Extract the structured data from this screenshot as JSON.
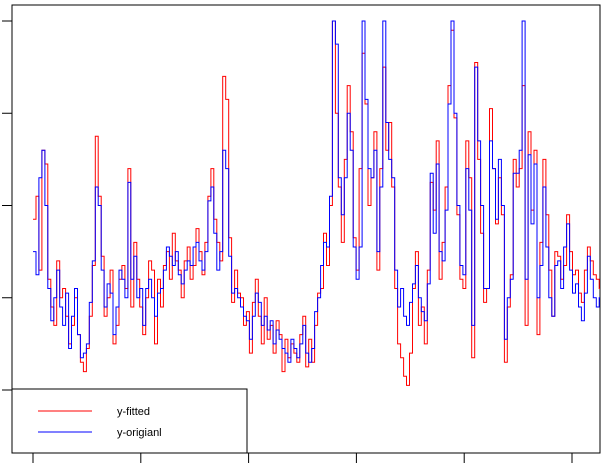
{
  "chart_data": {
    "type": "line",
    "title": "",
    "xlabel": "",
    "ylabel": "",
    "x_tick_labels": [
      "",
      "",
      "",
      "",
      "",
      ""
    ],
    "y_tick_labels": [
      "",
      "",
      "",
      "",
      ""
    ],
    "ylim": [
      -0.68,
      4.17
    ],
    "y_ticks": [
      0,
      1,
      2,
      3,
      4
    ],
    "x_ticks": [
      0,
      100,
      200,
      300,
      400,
      500
    ],
    "xlim": [
      -20,
      525
    ],
    "grid": false,
    "legend_position": "bottomleft",
    "step_style": true,
    "x_start": 0,
    "x_step": 2.75,
    "series": [
      {
        "name": "y-fitted",
        "color": "#ff0000",
        "values": [
          1.85,
          2.1,
          1.3,
          2.6,
          2.45,
          1.2,
          0.9,
          0.7,
          1.4,
          1.0,
          1.1,
          0.8,
          0.5,
          0.7,
          1.0,
          0.6,
          0.3,
          0.2,
          0.45,
          0.8,
          1.35,
          2.75,
          2.1,
          1.45,
          0.8,
          1.0,
          1.3,
          0.5,
          0.7,
          1.2,
          1.35,
          1.1,
          2.4,
          0.9,
          1.6,
          1.2,
          0.9,
          0.6,
          1.0,
          1.4,
          1.3,
          0.5,
          1.2,
          0.9,
          1.35,
          1.5,
          1.2,
          1.7,
          1.4,
          1.3,
          1.0,
          1.4,
          1.55,
          1.2,
          1.35,
          1.75,
          1.5,
          1.25,
          1.6,
          2.1,
          2.4,
          1.85,
          1.6,
          1.4,
          3.4,
          3.15,
          1.65,
          0.95,
          1.3,
          1.05,
          1.0,
          0.7,
          0.85,
          0.4,
          0.95,
          1.2,
          0.8,
          0.5,
          1.0,
          0.55,
          0.7,
          0.4,
          0.75,
          0.6,
          0.2,
          0.55,
          0.35,
          0.5,
          0.4,
          0.3,
          0.6,
          0.8,
          0.25,
          0.55,
          0.3,
          0.7,
          1.05,
          1.1,
          1.7,
          1.35,
          2.0,
          4.1,
          3.0,
          2.2,
          1.6,
          2.5,
          3.3,
          2.8,
          1.65,
          1.3,
          2.4,
          3.65,
          3.1,
          2.0,
          2.3,
          2.8,
          1.3,
          2.4,
          3.5,
          2.6,
          2.9,
          2.2,
          1.1,
          0.5,
          0.35,
          0.15,
          0.05,
          0.4,
          1.1,
          1.5,
          0.7,
          0.9,
          0.5,
          1.3,
          2.25,
          1.95,
          2.7,
          1.2,
          1.6,
          2.2,
          3.3,
          3.9,
          2.95,
          1.9,
          1.2,
          1.1,
          2.7,
          2.3,
          0.35,
          3.55,
          2.5,
          1.7,
          0.95,
          1.1,
          3.05,
          2.4,
          1.8,
          2.3,
          1.9,
          0.3,
          0.9,
          1.25,
          2.5,
          2.2,
          2.4,
          3.3,
          0.7,
          2.8,
          1.95,
          2.6,
          0.6,
          1.6,
          2.5,
          1.9,
          1.3,
          0.8,
          1.5,
          1.45,
          1.2,
          1.35,
          1.9,
          1.5,
          1.25,
          1.3,
          1.05,
          0.95,
          1.3,
          1.55,
          1.4,
          1.25,
          1.2,
          1.1,
          1.45,
          1.15,
          1.6,
          1.3,
          1.35,
          1.1,
          0.95,
          1.4,
          2.1,
          1.5,
          1.25,
          1.1,
          3.3,
          1.8,
          0.7,
          1.35,
          0.9,
          1.1,
          2.3,
          1.6,
          1.0,
          0.6,
          0.3,
          0.1,
          0.4,
          0.55,
          0.15,
          0.3,
          0.45,
          0.75,
          0.35,
          0.25,
          -0.05,
          0.3,
          0.55,
          0.8,
          0.4,
          0.6,
          0.2,
          -0.15,
          0.5,
          0.9,
          0.6,
          0.3,
          0.75,
          0.95,
          0.4,
          0.2,
          0.6,
          0.85,
          0.45,
          0.9,
          0.55,
          0.35,
          0.25,
          0.7,
          0.95,
          0.5,
          0.3,
          0.65,
          0.9,
          1.1,
          0.8,
          1.25,
          0.55,
          0.65,
          1.05,
          0.9,
          1.3,
          0.8,
          0.6,
          0.85,
          1.45,
          1.0,
          0.8,
          0.4,
          0.7,
          1.1,
          1.2,
          0.85,
          1.05,
          0.75,
          0.45,
          0.9,
          1.2,
          1.75,
          1.4,
          1.05,
          0.65,
          0.5,
          0.75,
          0.95,
          1.35,
          1.6,
          1.2,
          1.5,
          1.4,
          1.8,
          1.25,
          1.1,
          0.65,
          0.45,
          0.8,
          1.1,
          1.45,
          1.2,
          0.85,
          0.5,
          0.9,
          1.25,
          0.7,
          0.9,
          1.3,
          1.1,
          1.45,
          1.9,
          1.7,
          1.5,
          1.25,
          1.4
        ]
      },
      {
        "name": "y-origianl",
        "color": "#0000ff",
        "values": [
          1.5,
          1.25,
          2.3,
          2.6,
          2.0,
          1.1,
          0.75,
          1.0,
          1.3,
          0.9,
          0.7,
          1.05,
          0.45,
          0.8,
          1.1,
          0.6,
          0.35,
          0.4,
          0.5,
          0.95,
          1.4,
          2.2,
          2.0,
          1.3,
          0.9,
          1.15,
          1.05,
          0.6,
          0.9,
          1.3,
          1.2,
          1.0,
          2.25,
          1.2,
          1.45,
          1.0,
          1.1,
          0.7,
          1.1,
          1.2,
          1.0,
          0.8,
          1.05,
          1.1,
          1.3,
          1.55,
          1.45,
          1.35,
          1.5,
          1.25,
          1.15,
          1.3,
          1.4,
          1.35,
          1.55,
          1.6,
          1.4,
          1.3,
          1.5,
          2.05,
          2.2,
          1.7,
          1.3,
          1.5,
          2.6,
          2.4,
          1.45,
          1.05,
          1.1,
          1.0,
          0.9,
          0.8,
          0.75,
          0.55,
          0.8,
          1.05,
          0.95,
          0.7,
          0.8,
          0.65,
          0.75,
          0.5,
          0.65,
          0.55,
          0.45,
          0.4,
          0.3,
          0.55,
          0.45,
          0.35,
          0.5,
          0.7,
          0.4,
          0.3,
          0.45,
          0.85,
          1.0,
          1.35,
          1.6,
          1.55,
          2.1,
          4.0,
          3.75,
          2.3,
          1.9,
          2.3,
          3.0,
          2.6,
          1.55,
          1.2,
          1.55,
          4.0,
          3.15,
          2.4,
          2.3,
          2.6,
          1.5,
          2.2,
          4.0,
          2.9,
          2.5,
          2.3,
          1.3,
          0.9,
          1.1,
          0.8,
          0.7,
          0.95,
          1.15,
          1.35,
          1.0,
          0.85,
          0.75,
          1.15,
          2.35,
          1.7,
          2.45,
          1.5,
          1.4,
          1.95,
          3.1,
          4.0,
          3.0,
          2.0,
          1.35,
          1.25,
          2.4,
          1.95,
          0.7,
          3.5,
          2.7,
          2.0,
          1.1,
          1.1,
          2.7,
          2.4,
          1.85,
          2.5,
          2.0,
          0.55,
          1.0,
          1.2,
          2.35,
          2.35,
          2.6,
          4.0,
          1.2,
          2.55,
          1.8,
          2.45,
          1.0,
          1.35,
          2.2,
          1.55,
          1.0,
          0.8,
          1.35,
          1.4,
          1.1,
          1.55,
          1.8,
          1.3,
          1.05,
          1.15,
          0.9,
          0.75,
          1.05,
          1.45,
          1.2,
          1.0,
          0.9,
          1.0,
          1.35,
          1.05,
          1.45,
          1.25,
          1.2,
          1.0,
          1.1,
          1.55,
          1.75,
          1.35,
          1.2,
          1.0,
          4.0,
          4.0,
          1.5,
          1.15,
          0.95,
          0.9,
          1.8,
          1.4,
          0.85,
          0.5,
          0.2,
          0.05,
          0.3,
          0.45,
          0.1,
          0.2,
          0.35,
          0.6,
          0.4,
          0.15,
          -0.2,
          0.15,
          0.45,
          0.65,
          0.5,
          0.4,
          0.1,
          -0.1,
          0.4,
          0.8,
          0.7,
          0.45,
          0.6,
          0.8,
          0.5,
          0.3,
          0.5,
          0.75,
          0.55,
          0.8,
          0.45,
          0.3,
          0.15,
          0.6,
          0.85,
          0.6,
          0.35,
          0.55,
          0.75,
          0.95,
          0.9,
          1.1,
          0.6,
          0.75,
          1.0,
          1.1,
          1.0,
          0.85,
          0.7,
          0.75,
          1.2,
          0.95,
          0.7,
          0.5,
          0.75,
          1.0,
          0.85,
          0.9,
          0.9,
          0.9,
          0.6,
          1.05,
          1.15,
          1.35,
          1.2,
          0.95,
          0.7,
          0.55,
          0.8,
          1.0,
          1.3,
          1.95,
          1.1,
          1.35,
          1.45,
          1.35,
          1.0,
          0.95,
          0.4,
          0.2,
          0.7,
          1.2,
          1.55,
          1.1,
          0.9,
          0.7,
          0.95,
          1.4,
          0.8,
          1.05,
          1.2,
          1.0,
          1.3,
          1.6,
          1.5,
          1.4,
          0.9,
          0.2
        ]
      }
    ]
  },
  "legend": {
    "items": [
      {
        "label": "y-fitted",
        "color": "#ff0000"
      },
      {
        "label": "y-origianl",
        "color": "#0000ff"
      }
    ]
  }
}
